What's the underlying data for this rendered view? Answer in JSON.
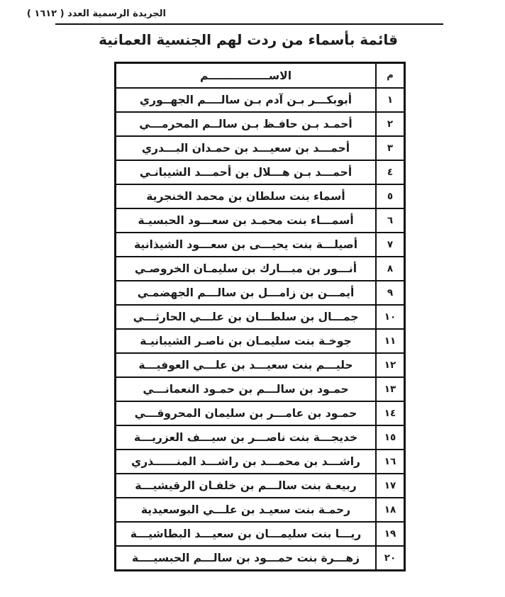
{
  "page": {
    "header": "الجريدة الرسمية العدد ( ١٦١٢ )",
    "title": "قائمة بأسماء من ردت لهم الجنسية العمانية"
  },
  "table": {
    "name_header": "الاســــــــــــــــم",
    "num_header": "م",
    "rows": [
      {
        "num": "١",
        "name": "أبوبكـــر بـن آدم بـن سالــــم الجهــوري"
      },
      {
        "num": "٢",
        "name": "أحمـد بـن حافـظ بـن سالــم المحرمـــي"
      },
      {
        "num": "٣",
        "name": "أحمـــد بن سعيـــد بن حمـدان البـــدري"
      },
      {
        "num": "٤",
        "name": "أحمـــد بـن هـــلال بن أحمـــد الشيبانـي"
      },
      {
        "num": "٥",
        "name": "أسماء بنت سلطان بن محمد الخنجرية"
      },
      {
        "num": "٦",
        "name": "أسمـــاء بنت محمـد بن سعـــود الحبسيـة"
      },
      {
        "num": "٧",
        "name": "أصيلـــة بنت يحيـــى بن سعـــود الشيذانية"
      },
      {
        "num": "٨",
        "name": "أنـــور بن مبـــارك بن سليمـان الخروصـي"
      },
      {
        "num": "٩",
        "name": "أيمـــن بن زامـــل بن سالـــم الجهضمـي"
      },
      {
        "num": "١٠",
        "name": "جمـــال بن سلطـــان بن علـــي الحارثـــي"
      },
      {
        "num": "١١",
        "name": "جوخـة بنت سليمـان بن ناصـر الشيبانيـة"
      },
      {
        "num": "١٢",
        "name": "حليـــم بنت سعيـــد بن علـــي العوفيـــة"
      },
      {
        "num": "١٣",
        "name": "حمـود بن سالـــم بن حمـود النعمانـــي"
      },
      {
        "num": "١٤",
        "name": "حمـود بن عامـــر بن سليمان المحروقـــي"
      },
      {
        "num": "١٥",
        "name": "خديجـــة بنت ناصـــر بن سيـــف العزريـــة"
      },
      {
        "num": "١٦",
        "name": "راشـــد بن محمـــد بن راشـــد المنــــــذري"
      },
      {
        "num": "١٧",
        "name": "ربيعـة بنت سالـــم بن خلفـان الرقيشيـــة"
      },
      {
        "num": "١٨",
        "name": "رحمـة بنت سعيـد بن علـــي البوسعيدية"
      },
      {
        "num": "١٩",
        "name": "ريـــا بنت سليمـــان بن سعيـــد البطاشيـــة"
      },
      {
        "num": "٢٠",
        "name": "زهـــرة بنت حمـــود بن سالـــم الحبسيــــة"
      }
    ]
  }
}
